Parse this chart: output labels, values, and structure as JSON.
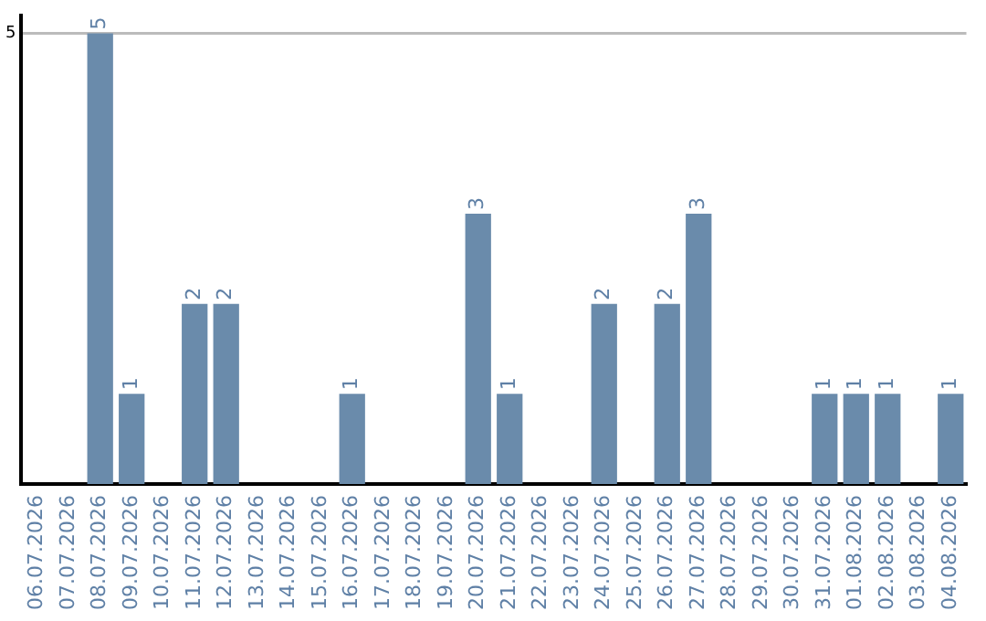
{
  "chart_data": {
    "type": "bar",
    "categories": [
      "06.07.2026",
      "07.07.2026",
      "08.07.2026",
      "09.07.2026",
      "10.07.2026",
      "11.07.2026",
      "12.07.2026",
      "13.07.2026",
      "14.07.2026",
      "15.07.2026",
      "16.07.2026",
      "17.07.2026",
      "18.07.2026",
      "19.07.2026",
      "20.07.2026",
      "21.07.2026",
      "22.07.2026",
      "23.07.2026",
      "24.07.2026",
      "25.07.2026",
      "26.07.2026",
      "27.07.2026",
      "28.07.2026",
      "29.07.2026",
      "30.07.2026",
      "31.07.2026",
      "01.08.2026",
      "02.08.2026",
      "03.08.2026",
      "04.08.2026"
    ],
    "values": [
      0,
      0,
      5,
      1,
      0,
      2,
      2,
      0,
      0,
      0,
      1,
      0,
      0,
      0,
      3,
      1,
      0,
      0,
      2,
      0,
      2,
      3,
      0,
      0,
      0,
      1,
      1,
      1,
      0,
      1
    ],
    "value_labels": [
      null,
      null,
      "5",
      "1",
      null,
      "2",
      "2",
      null,
      null,
      null,
      "1",
      null,
      null,
      null,
      "3",
      "1",
      null,
      null,
      "2",
      null,
      "2",
      "3",
      null,
      null,
      null,
      "1",
      "1",
      "1",
      null,
      "1"
    ],
    "color": "#6a8bab",
    "ylim": [
      0,
      5.2
    ],
    "yticks": [
      5
    ],
    "grid": "y",
    "legend": false
  }
}
